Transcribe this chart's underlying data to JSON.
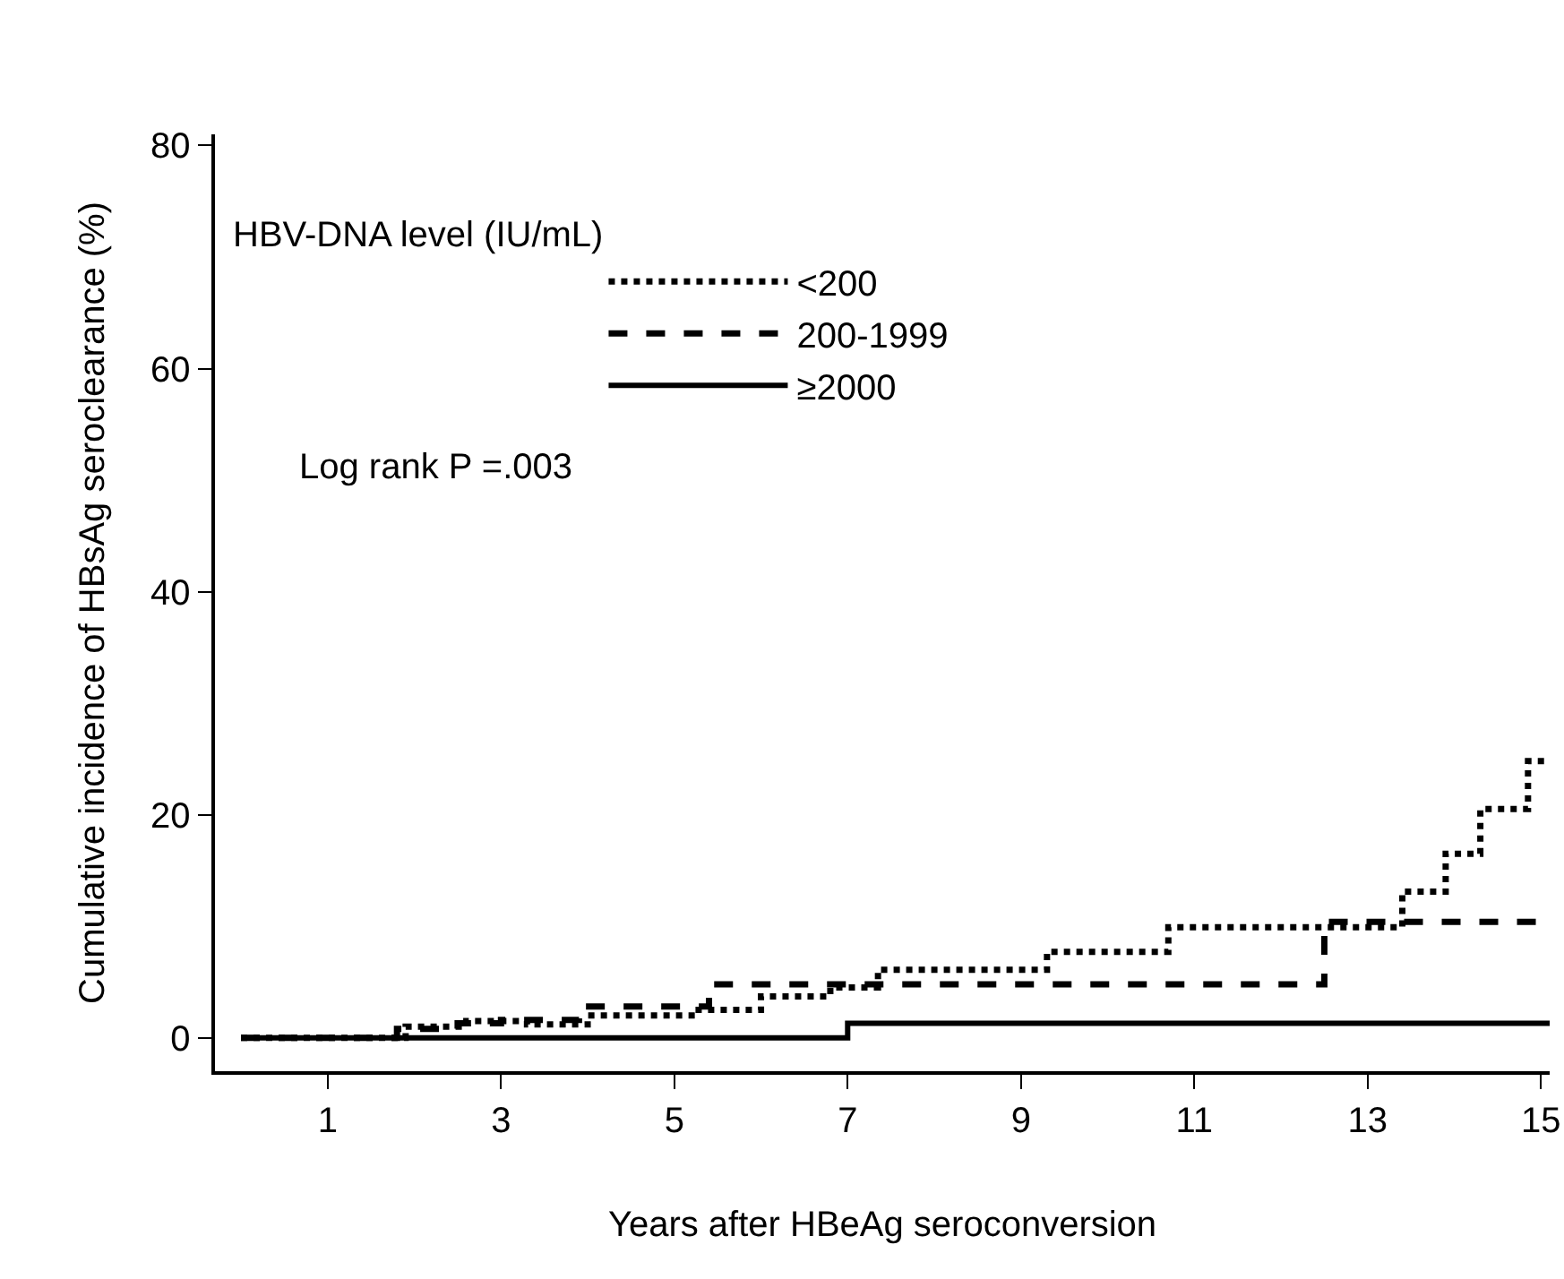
{
  "chart_data": {
    "type": "step",
    "xlabel": "Years after HBeAg seroconversion",
    "ylabel": "Cumulative incidence of HBsAg seroclearance (%)",
    "legend_title": "HBV-DNA level (IU/mL)",
    "annotations": [
      "Log rank P =.003"
    ],
    "series": [
      {
        "name": "<200",
        "color": "#000000",
        "line_style": "dotted",
        "x": [
          0,
          1.9,
          2.6,
          3.3,
          4.0,
          5.2,
          6.0,
          6.8,
          7.35,
          9.3,
          10.7,
          13.4,
          13.9,
          14.3,
          14.85,
          15.1
        ],
        "values": [
          0,
          1.0,
          1.5,
          1.2,
          2.0,
          2.5,
          3.7,
          4.5,
          6.1,
          7.7,
          9.9,
          13.1,
          16.5,
          20.5,
          24.8,
          24.8
        ]
      },
      {
        "name": "200-1999",
        "color": "#000000",
        "line_style": "dashed",
        "x": [
          0,
          1.8,
          2.5,
          3.0,
          3.9,
          5.4,
          12.5,
          15.1
        ],
        "values": [
          0,
          0.8,
          1.3,
          1.6,
          2.8,
          4.8,
          10.4,
          10.4
        ]
      },
      {
        "name": "≥2000",
        "color": "#000000",
        "line_style": "solid",
        "x": [
          0,
          7,
          15.1
        ],
        "values": [
          0,
          1.3,
          1.3
        ]
      }
    ],
    "xlim": [
      -0.3,
      15.1
    ],
    "xticks": [
      1,
      3,
      5,
      7,
      9,
      11,
      13,
      15
    ],
    "ylim": [
      -3,
      81
    ],
    "yticks": [
      0,
      20,
      40,
      60,
      80
    ],
    "grid": false,
    "legend": "top left",
    "marker": "none"
  }
}
